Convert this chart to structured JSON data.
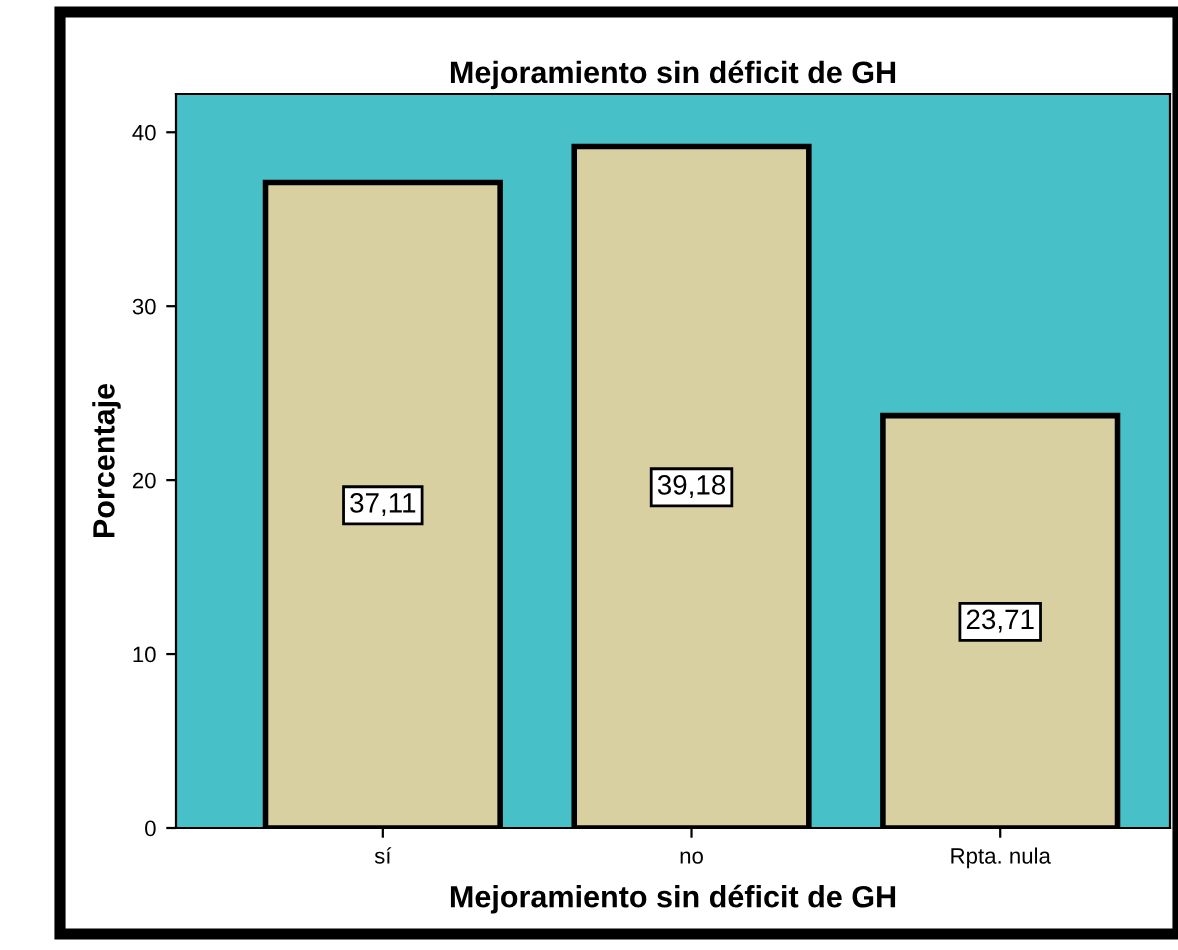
{
  "chart_data": {
    "type": "bar",
    "title": "Mejoramiento sin déficit de GH",
    "xlabel": "Mejoramiento sin déficit de GH",
    "ylabel": "Porcentaje",
    "categories": [
      "sí",
      "no",
      "Rpta. nula"
    ],
    "values": [
      37.11,
      39.18,
      23.71
    ],
    "value_labels": [
      "37,11",
      "39,18",
      "23,71"
    ],
    "color": "#d8d0a0",
    "bands": [
      {
        "axis": "y",
        "from": 0,
        "to": 42.2,
        "color": "#48c0c8"
      }
    ],
    "ylim": [
      0,
      42.2
    ],
    "yticks": [
      0,
      10,
      20,
      30,
      40
    ],
    "grid": false,
    "legend": false
  }
}
